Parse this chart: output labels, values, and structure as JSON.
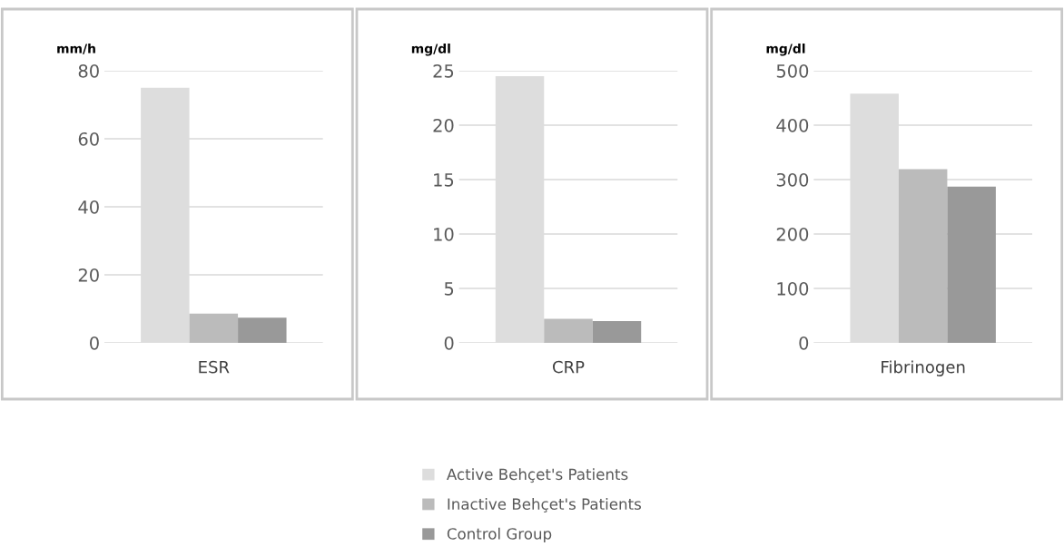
{
  "chart_data": [
    {
      "type": "bar",
      "ylabel": "mm/h",
      "categories": [
        "ESR"
      ],
      "ylim": [
        0,
        80
      ],
      "yticks": [
        0,
        20,
        40,
        60,
        80
      ],
      "grid": "y",
      "legend": "bottom",
      "series": [
        {
          "name": "Active Behçet's Patients",
          "color": "#dddddd",
          "values": [
            75
          ]
        },
        {
          "name": "Inactive Behçet's Patients",
          "color": "#bbbbbb",
          "values": [
            8.6
          ]
        },
        {
          "name": "Control Group",
          "color": "#999999",
          "values": [
            7.4
          ]
        }
      ]
    },
    {
      "type": "bar",
      "ylabel": "mg/dl",
      "categories": [
        "CRP"
      ],
      "ylim": [
        0,
        25
      ],
      "yticks": [
        0,
        5,
        10,
        15,
        20,
        25
      ],
      "grid": "y",
      "series": [
        {
          "color": "#dddddd",
          "values": [
            24.5
          ]
        },
        {
          "color": "#bbbbbb",
          "values": [
            2.2
          ]
        },
        {
          "color": "#999999",
          "values": [
            2.0
          ]
        }
      ]
    },
    {
      "type": "bar",
      "ylabel": "mg/dl",
      "categories": [
        "Fibrinogen"
      ],
      "ylim": [
        0,
        500
      ],
      "yticks": [
        0,
        100,
        200,
        300,
        400,
        500
      ],
      "grid": "y",
      "series": [
        {
          "color": "#dddddd",
          "values": [
            458
          ]
        },
        {
          "color": "#bbbbbb",
          "values": [
            319
          ]
        },
        {
          "color": "#999999",
          "values": [
            287
          ]
        }
      ]
    }
  ]
}
